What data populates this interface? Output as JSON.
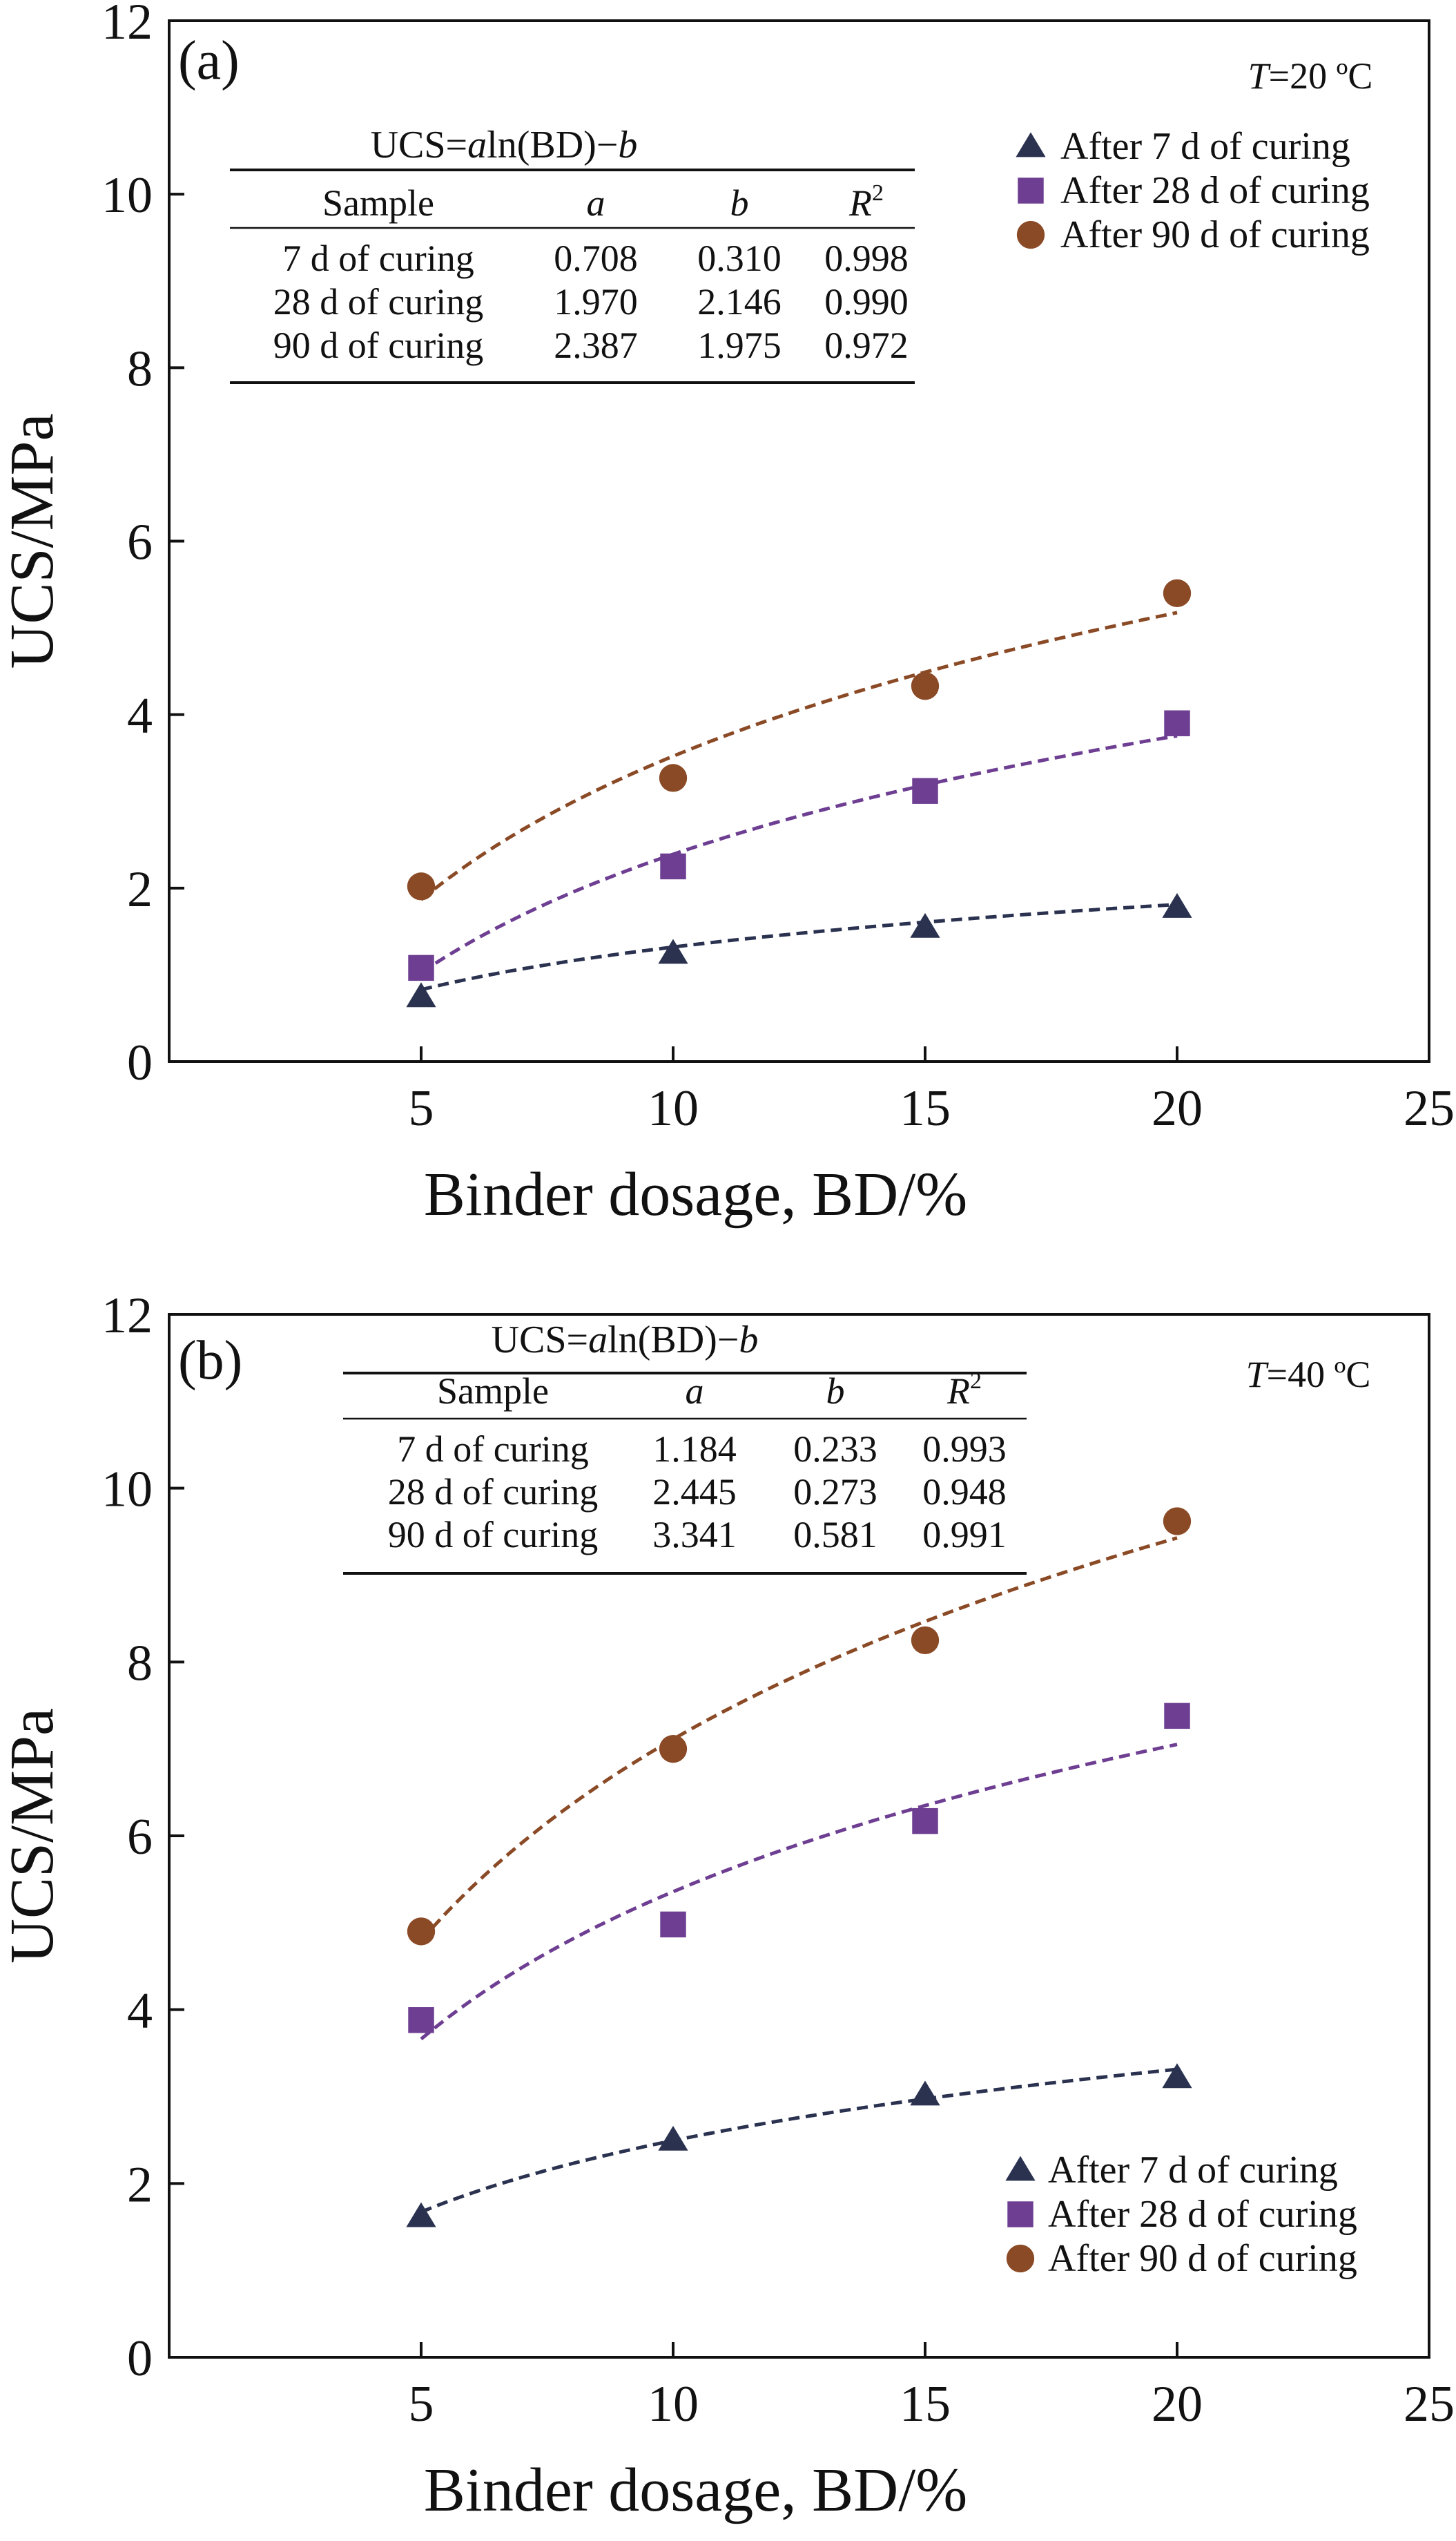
{
  "chart_data": [
    {
      "type": "scatter",
      "panel_label": "(a)",
      "temperature_text": "=20 ºC",
      "temperature_var": "T",
      "xlabel": "Binder dosage, BD/%",
      "ylabel": "UCS/MPa",
      "xlim": [
        0,
        25
      ],
      "ylim": [
        0,
        12
      ],
      "x_ticks": [
        5,
        10,
        15,
        20,
        25
      ],
      "y_ticks": [
        0,
        2,
        4,
        6,
        8,
        10,
        12
      ],
      "equation": {
        "prefix": "UCS=",
        "a": "a",
        "mid": "ln(BD)−",
        "b": "b"
      },
      "fit_table": {
        "headers": [
          "Sample",
          "a",
          "b",
          "R"
        ],
        "header_sup": "2",
        "rows": [
          [
            "7 d of curing",
            "0.708",
            "0.310",
            "0.998"
          ],
          [
            "28 d of curing",
            "1.970",
            "2.146",
            "0.990"
          ],
          [
            "90 d of curing",
            "2.387",
            "1.975",
            "0.972"
          ]
        ]
      },
      "legend": {
        "position": "top-right"
      },
      "series": [
        {
          "name": "After 7 d of curing",
          "marker": "triangle",
          "color": "#2a3250",
          "x": [
            5,
            10,
            15,
            20
          ],
          "values": [
            0.75,
            1.25,
            1.55,
            1.78
          ],
          "fit": {
            "a": 0.708,
            "b": 0.31
          }
        },
        {
          "name": "After 28 d of curing",
          "marker": "square",
          "color": "#6d3e91",
          "x": [
            5,
            10,
            15,
            20
          ],
          "values": [
            1.08,
            2.25,
            3.12,
            3.9
          ],
          "fit": {
            "a": 1.97,
            "b": 2.146
          }
        },
        {
          "name": "After 90 d of curing",
          "marker": "circle",
          "color": "#8b4a26",
          "x": [
            5,
            10,
            15,
            20
          ],
          "values": [
            2.02,
            3.27,
            4.33,
            5.4
          ],
          "fit": {
            "a": 2.387,
            "b": 1.975
          }
        }
      ]
    },
    {
      "type": "scatter",
      "panel_label": "(b)",
      "temperature_text": "=40 ºC",
      "temperature_var": "T",
      "xlabel": "Binder dosage, BD/%",
      "ylabel": "UCS/MPa",
      "xlim": [
        0,
        25
      ],
      "ylim": [
        0,
        12
      ],
      "x_ticks": [
        5,
        10,
        15,
        20,
        25
      ],
      "y_ticks": [
        0,
        2,
        4,
        6,
        8,
        10,
        12
      ],
      "equation": {
        "prefix": "UCS=",
        "a": "a",
        "mid": "ln(BD)−",
        "b": "b"
      },
      "fit_table": {
        "headers": [
          "Sample",
          "a",
          "b",
          "R"
        ],
        "header_sup": "2",
        "rows": [
          [
            "7 d of curing",
            "1.184",
            "0.233",
            "0.993"
          ],
          [
            "28 d of curing",
            "2.445",
            "0.273",
            "0.948"
          ],
          [
            "90 d of curing",
            "3.341",
            "0.581",
            "0.991"
          ]
        ]
      },
      "legend": {
        "position": "bottom-right"
      },
      "series": [
        {
          "name": "After 7 d of curing",
          "marker": "triangle",
          "color": "#2a3250",
          "x": [
            5,
            10,
            15,
            20
          ],
          "values": [
            1.62,
            2.5,
            3.02,
            3.22
          ],
          "fit": {
            "a": 1.184,
            "b": 0.233
          }
        },
        {
          "name": "After 28 d of curing",
          "marker": "square",
          "color": "#6d3e91",
          "x": [
            5,
            10,
            15,
            20
          ],
          "values": [
            3.88,
            4.98,
            6.17,
            7.38
          ],
          "fit": {
            "a": 2.445,
            "b": 0.273
          }
        },
        {
          "name": "After 90 d of curing",
          "marker": "circle",
          "color": "#8b4a26",
          "x": [
            5,
            10,
            15,
            20
          ],
          "values": [
            4.9,
            7.0,
            8.25,
            9.62
          ],
          "fit": {
            "a": 3.341,
            "b": 0.581
          }
        }
      ]
    }
  ]
}
